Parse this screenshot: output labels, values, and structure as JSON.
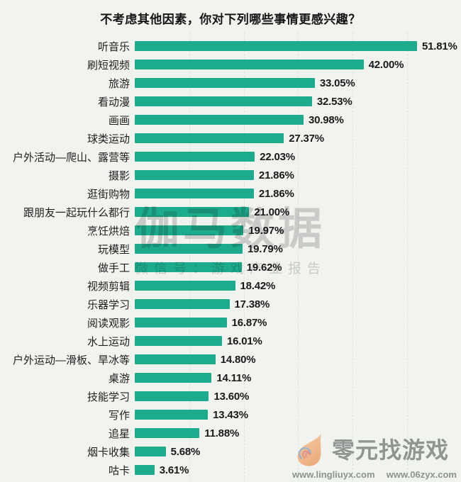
{
  "title": "不考虑其他因素，你对下列哪些事情更感兴趣？",
  "chart_data": {
    "type": "bar",
    "orientation": "horizontal",
    "title": "不考虑其他因素，你对下列哪些事情更感兴趣？",
    "xlabel": "",
    "ylabel": "",
    "xlim": [
      0,
      55
    ],
    "grid": "vertical-dashed",
    "gridline_percents": [
      10,
      20,
      30,
      40,
      50
    ],
    "bar_color": "#1dab8d",
    "categories": [
      "听音乐",
      "刷短视频",
      "旅游",
      "看动漫",
      "画画",
      "球类运动",
      "户外活动—爬山、露营等",
      "摄影",
      "逛街购物",
      "跟朋友一起玩什么都行",
      "烹饪烘焙",
      "玩模型",
      "做手工",
      "视频剪辑",
      "乐器学习",
      "阅读观影",
      "水上运动",
      "户外运动—滑板、旱冰等",
      "桌游",
      "技能学习",
      "写作",
      "追星",
      "烟卡收集",
      "咕卡"
    ],
    "values": [
      51.81,
      42.0,
      33.05,
      32.53,
      30.98,
      27.37,
      22.03,
      21.86,
      21.86,
      21.0,
      19.97,
      19.79,
      19.62,
      18.42,
      17.38,
      16.87,
      16.01,
      14.8,
      14.11,
      13.6,
      13.43,
      11.88,
      5.68,
      3.61
    ],
    "value_labels": [
      "51.81%",
      "42.00%",
      "33.05%",
      "32.53%",
      "30.98%",
      "27.37%",
      "22.03%",
      "21.86%",
      "21.86%",
      "21.00%",
      "19.97%",
      "19.79%",
      "19.62%",
      "18.42%",
      "17.38%",
      "16.87%",
      "16.01%",
      "14.80%",
      "14.11%",
      "13.60%",
      "13.43%",
      "11.88%",
      "5.68%",
      "3.61%"
    ]
  },
  "watermark": {
    "text": "伽马数据",
    "subtext": "微信号：游戏产业报告"
  },
  "site_badge": {
    "name": "零元找游戏",
    "urls": [
      "www.lingliuyx.com",
      "www.06zyx.com"
    ]
  }
}
